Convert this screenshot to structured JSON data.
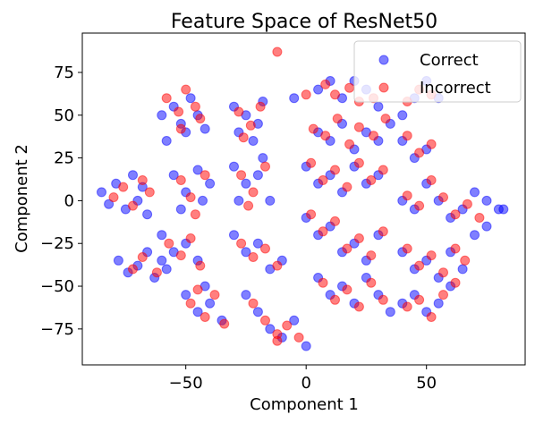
{
  "chart_data": {
    "type": "scatter",
    "title": "Feature Space of ResNet50",
    "xlabel": "Component 1",
    "ylabel": "Component 2",
    "xlim": [
      -93,
      91
    ],
    "ylim": [
      -96,
      98
    ],
    "xticks": [
      -50,
      0,
      50
    ],
    "xtick_labels": [
      "−50",
      "0",
      "50"
    ],
    "yticks": [
      -75,
      -50,
      -25,
      0,
      25,
      50,
      75
    ],
    "ytick_labels": [
      "−75",
      "−50",
      "−25",
      "0",
      "25",
      "50",
      "75"
    ],
    "grid": false,
    "legend_position": "top-right",
    "series": [
      {
        "name": "Correct",
        "color": "#0000ff",
        "alpha": 0.5,
        "points": [
          [
            -85,
            5
          ],
          [
            -82,
            -2
          ],
          [
            -79,
            10
          ],
          [
            -75,
            -5
          ],
          [
            -72,
            15
          ],
          [
            -70,
            0
          ],
          [
            -68,
            8
          ],
          [
            -66,
            -8
          ],
          [
            -78,
            -35
          ],
          [
            -74,
            -42
          ],
          [
            -70,
            -38
          ],
          [
            -66,
            -30
          ],
          [
            -63,
            -45
          ],
          [
            -60,
            -35
          ],
          [
            -60,
            50
          ],
          [
            -55,
            55
          ],
          [
            -52,
            45
          ],
          [
            -48,
            60
          ],
          [
            -45,
            50
          ],
          [
            -50,
            40
          ],
          [
            -58,
            35
          ],
          [
            -42,
            42
          ],
          [
            -55,
            15
          ],
          [
            -50,
            5
          ],
          [
            -45,
            18
          ],
          [
            -40,
            10
          ],
          [
            -52,
            -5
          ],
          [
            -43,
            0
          ],
          [
            -60,
            -20
          ],
          [
            -55,
            -30
          ],
          [
            -50,
            -25
          ],
          [
            -45,
            -35
          ],
          [
            -58,
            -40
          ],
          [
            -50,
            -55
          ],
          [
            -45,
            -65
          ],
          [
            -40,
            -60
          ],
          [
            -35,
            -70
          ],
          [
            -42,
            -50
          ],
          [
            -30,
            55
          ],
          [
            -25,
            50
          ],
          [
            -20,
            45
          ],
          [
            -28,
            40
          ],
          [
            -18,
            58
          ],
          [
            -22,
            35
          ],
          [
            -30,
            20
          ],
          [
            -25,
            10
          ],
          [
            -20,
            15
          ],
          [
            -15,
            0
          ],
          [
            -28,
            0
          ],
          [
            -18,
            25
          ],
          [
            -30,
            -20
          ],
          [
            -25,
            -30
          ],
          [
            -20,
            -25
          ],
          [
            -15,
            -40
          ],
          [
            -10,
            -35
          ],
          [
            -25,
            -55
          ],
          [
            -20,
            -65
          ],
          [
            -15,
            -75
          ],
          [
            -10,
            -80
          ],
          [
            -5,
            -70
          ],
          [
            0,
            -85
          ],
          [
            -5,
            60
          ],
          [
            5,
            65
          ],
          [
            10,
            70
          ],
          [
            15,
            60
          ],
          [
            20,
            70
          ],
          [
            25,
            65
          ],
          [
            30,
            55
          ],
          [
            5,
            40
          ],
          [
            10,
            35
          ],
          [
            15,
            45
          ],
          [
            20,
            30
          ],
          [
            25,
            40
          ],
          [
            30,
            35
          ],
          [
            35,
            45
          ],
          [
            0,
            20
          ],
          [
            5,
            10
          ],
          [
            10,
            15
          ],
          [
            15,
            5
          ],
          [
            20,
            20
          ],
          [
            25,
            10
          ],
          [
            30,
            15
          ],
          [
            0,
            -10
          ],
          [
            5,
            -20
          ],
          [
            10,
            -15
          ],
          [
            15,
            -30
          ],
          [
            20,
            -25
          ],
          [
            25,
            -35
          ],
          [
            30,
            -20
          ],
          [
            5,
            -45
          ],
          [
            10,
            -55
          ],
          [
            15,
            -50
          ],
          [
            20,
            -60
          ],
          [
            25,
            -45
          ],
          [
            30,
            -55
          ],
          [
            35,
            -65
          ],
          [
            40,
            50
          ],
          [
            45,
            60
          ],
          [
            50,
            70
          ],
          [
            55,
            60
          ],
          [
            40,
            35
          ],
          [
            45,
            25
          ],
          [
            50,
            30
          ],
          [
            40,
            0
          ],
          [
            45,
            -5
          ],
          [
            50,
            10
          ],
          [
            55,
            0
          ],
          [
            60,
            -10
          ],
          [
            65,
            -5
          ],
          [
            70,
            5
          ],
          [
            75,
            0
          ],
          [
            40,
            -30
          ],
          [
            45,
            -40
          ],
          [
            50,
            -35
          ],
          [
            55,
            -45
          ],
          [
            60,
            -30
          ],
          [
            65,
            -40
          ],
          [
            70,
            -20
          ],
          [
            40,
            -60
          ],
          [
            45,
            -55
          ],
          [
            50,
            -65
          ],
          [
            55,
            -60
          ],
          [
            60,
            -50
          ],
          [
            75,
            -15
          ],
          [
            80,
            -5
          ],
          [
            82,
            -5
          ]
        ]
      },
      {
        "name": "Incorrect",
        "color": "#ff0000",
        "alpha": 0.5,
        "points": [
          [
            -80,
            2
          ],
          [
            -76,
            8
          ],
          [
            -72,
            -3
          ],
          [
            -68,
            12
          ],
          [
            -65,
            5
          ],
          [
            -72,
            -40
          ],
          [
            -68,
            -33
          ],
          [
            -62,
            -42
          ],
          [
            -58,
            60
          ],
          [
            -53,
            52
          ],
          [
            -50,
            65
          ],
          [
            -46,
            55
          ],
          [
            -52,
            42
          ],
          [
            -44,
            48
          ],
          [
            -52,
            12
          ],
          [
            -48,
            2
          ],
          [
            -42,
            15
          ],
          [
            -46,
            -8
          ],
          [
            -57,
            -25
          ],
          [
            -52,
            -32
          ],
          [
            -48,
            -22
          ],
          [
            -44,
            -38
          ],
          [
            -48,
            -60
          ],
          [
            -42,
            -68
          ],
          [
            -38,
            -55
          ],
          [
            -34,
            -72
          ],
          [
            -45,
            -52
          ],
          [
            -28,
            52
          ],
          [
            -23,
            44
          ],
          [
            -19,
            55
          ],
          [
            -26,
            37
          ],
          [
            -27,
            15
          ],
          [
            -22,
            5
          ],
          [
            -17,
            20
          ],
          [
            -24,
            -3
          ],
          [
            -27,
            -25
          ],
          [
            -22,
            -33
          ],
          [
            -17,
            -28
          ],
          [
            -12,
            -38
          ],
          [
            -22,
            -60
          ],
          [
            -17,
            -70
          ],
          [
            -12,
            -78
          ],
          [
            -8,
            -73
          ],
          [
            -3,
            -80
          ],
          [
            -12,
            -82
          ],
          [
            -12,
            87
          ],
          [
            0,
            62
          ],
          [
            8,
            68
          ],
          [
            12,
            62
          ],
          [
            18,
            66
          ],
          [
            22,
            58
          ],
          [
            28,
            60
          ],
          [
            3,
            42
          ],
          [
            8,
            38
          ],
          [
            13,
            48
          ],
          [
            18,
            33
          ],
          [
            22,
            43
          ],
          [
            28,
            38
          ],
          [
            33,
            48
          ],
          [
            2,
            22
          ],
          [
            7,
            12
          ],
          [
            12,
            18
          ],
          [
            17,
            8
          ],
          [
            22,
            22
          ],
          [
            27,
            12
          ],
          [
            32,
            18
          ],
          [
            2,
            -8
          ],
          [
            7,
            -18
          ],
          [
            12,
            -12
          ],
          [
            17,
            -28
          ],
          [
            22,
            -22
          ],
          [
            27,
            -32
          ],
          [
            32,
            -18
          ],
          [
            7,
            -48
          ],
          [
            12,
            -58
          ],
          [
            17,
            -52
          ],
          [
            22,
            -62
          ],
          [
            27,
            -48
          ],
          [
            32,
            -58
          ],
          [
            42,
            58
          ],
          [
            47,
            65
          ],
          [
            52,
            62
          ],
          [
            42,
            38
          ],
          [
            47,
            28
          ],
          [
            52,
            33
          ],
          [
            42,
            3
          ],
          [
            47,
            -3
          ],
          [
            52,
            12
          ],
          [
            57,
            2
          ],
          [
            62,
            -8
          ],
          [
            67,
            -2
          ],
          [
            72,
            -10
          ],
          [
            42,
            -28
          ],
          [
            47,
            -38
          ],
          [
            52,
            -32
          ],
          [
            57,
            -42
          ],
          [
            62,
            -28
          ],
          [
            66,
            -35
          ],
          [
            42,
            -62
          ],
          [
            47,
            -58
          ],
          [
            52,
            -68
          ],
          [
            57,
            -55
          ],
          [
            62,
            -48
          ]
        ]
      }
    ]
  }
}
